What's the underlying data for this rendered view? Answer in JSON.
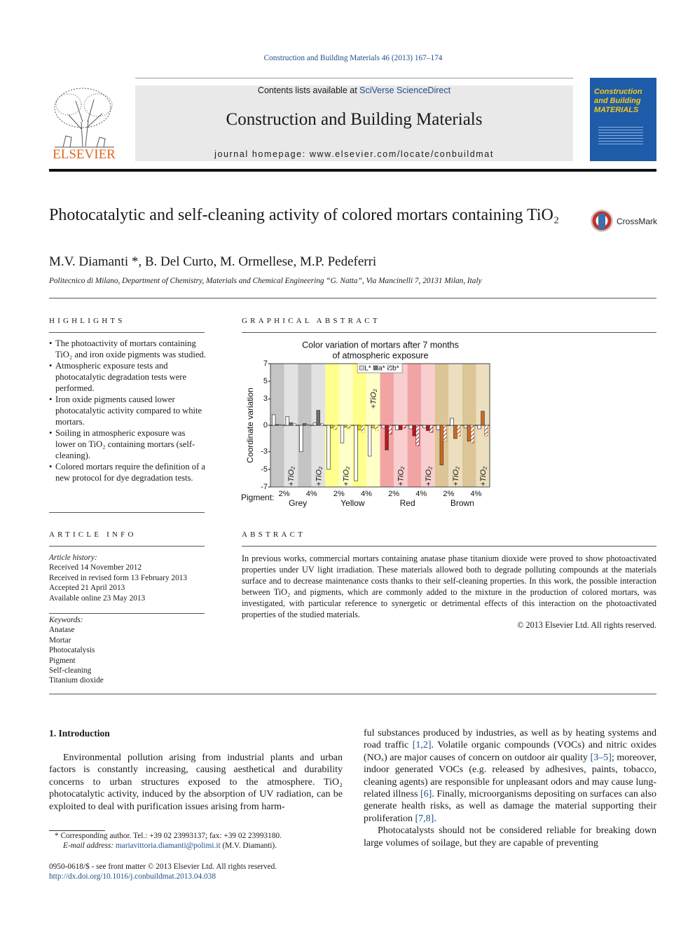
{
  "header": {
    "journal_ref": "Construction and Building Materials 46 (2013) 167–174",
    "contents_prefix": "Contents lists available at ",
    "contents_link": "SciVerse ScienceDirect",
    "journal": "Construction and Building Materials",
    "homepage_prefix": "journal homepage: ",
    "homepage": "www.elsevier.com/locate/conbuildmat",
    "publisher": "ELSEVIER",
    "cover_title": "Construction and Building MATERIALS"
  },
  "article": {
    "title": "Photocatalytic and self-cleaning activity of colored mortars containing TiO₂",
    "crossmark": "CrossMark",
    "authors": "M.V. Diamanti *, B. Del Curto, M. Ormellese, M.P. Pedeferri",
    "affiliation": "Politecnico di Milano, Department of Chemistry, Materials and Chemical Engineering “G. Natta”, Via Mancinelli 7, 20131 Milan, Italy"
  },
  "highlights": {
    "heading": "HIGHLIGHTS",
    "items": [
      "The photoactivity of mortars containing TiO₂ and iron oxide pigments was studied.",
      "Atmospheric exposure tests and photocatalytic degradation tests were performed.",
      "Iron oxide pigments caused lower photocatalytic activity compared to white mortars.",
      "Soiling in atmospheric exposure was lower on TiO₂ containing mortars (self-cleaning).",
      "Colored mortars require the definition of a new protocol for dye degradation tests."
    ]
  },
  "article_info": {
    "heading": "ARTICLE INFO",
    "history_label": "Article history:",
    "history": [
      "Received 14 November 2012",
      "Received in revised form 13 February 2013",
      "Accepted 21 April 2013",
      "Available online 23 May 2013"
    ],
    "keywords_label": "Keywords:",
    "keywords": [
      "Anatase",
      "Mortar",
      "Photocatalysis",
      "Pigment",
      "Self-cleaning",
      "Titanium dioxide"
    ]
  },
  "graphical_abstract": {
    "heading": "GRAPHICAL ABSTRACT",
    "chart_data": {
      "type": "bar",
      "title_lines": [
        "Color variation of mortars after 7 months",
        "of atmospheric exposure"
      ],
      "y_label": "Coordinate variation",
      "x_prefix": "Pigment:",
      "ylim": [
        -7,
        7
      ],
      "yticks": [
        -7,
        -5,
        -3,
        0,
        3,
        5,
        7
      ],
      "pair_labels": [
        "2%",
        "4%",
        "2%",
        "4%",
        "2%",
        "4%",
        "2%",
        "4%"
      ],
      "tio2_labels": [
        "+TiO₂",
        "+TiO₂",
        "+TiO₂",
        "+TiO₂",
        "+TiO₂",
        "+TiO₂",
        "+TiO₂",
        "+TiO₂"
      ],
      "groups": [
        {
          "name": "Grey",
          "color": "#707070",
          "backgrounds": [
            "#c4c4c4",
            "#e2e2e2"
          ]
        },
        {
          "name": "Yellow",
          "color": "#e8d800",
          "backgrounds": [
            "#ffff8c",
            "#ffffc8"
          ]
        },
        {
          "name": "Red",
          "color": "#c0141e",
          "backgrounds": [
            "#f2a4a4",
            "#f8cece"
          ]
        },
        {
          "name": "Brown",
          "color": "#d2691e",
          "backgrounds": [
            "#dcc596",
            "#ecdfbf"
          ]
        }
      ],
      "series": [
        {
          "name": "L*",
          "fill": "#ffffff",
          "values": [
            1.2,
            1.0,
            -3.0,
            0.3,
            -5.0,
            -2.0,
            -6.3,
            -3.5,
            -0.3,
            -0.5,
            -0.4,
            -0.3,
            -0.5,
            0.8,
            -0.3,
            -0.4
          ]
        },
        {
          "name": "a*",
          "fill": "group",
          "values": [
            0.1,
            0.3,
            0.2,
            1.7,
            -0.3,
            -0.2,
            -0.5,
            -0.3,
            -2.8,
            -0.5,
            -1.2,
            -0.6,
            -4.5,
            -1.5,
            -1.8,
            1.6
          ]
        },
        {
          "name": "b*",
          "fill": "hatch",
          "values": [
            0.1,
            0.2,
            0.1,
            0.2,
            -0.5,
            -0.4,
            -0.8,
            -0.6,
            -1.0,
            -0.3,
            -2.3,
            -0.8,
            -1.8,
            -1.2,
            -2.0,
            -1.2
          ]
        }
      ]
    }
  },
  "abstract": {
    "heading": "ABSTRACT",
    "text": "In previous works, commercial mortars containing anatase phase titanium dioxide were proved to show photoactivated properties under UV light irradiation. These materials allowed both to degrade polluting compounds at the materials surface and to decrease maintenance costs thanks to their self-cleaning properties. In this work, the possible interaction between TiO₂ and pigments, which are commonly added to the mixture in the production of colored mortars, was investigated, with particular reference to synergetic or detrimental effects of this interaction on the photoactivated properties of the studied materials.",
    "copyright": "© 2013 Elsevier Ltd. All rights reserved."
  },
  "introduction": {
    "heading": "1. Introduction",
    "paragraphs": [
      [
        {
          "text": "Environmental pollution arising from industrial plants and urban factors is constantly increasing, causing aesthetical and durability concerns to urban structures exposed to the atmosphere. TiO₂ photocatalytic activity, induced by the absorption of UV radiation, can be exploited to deal with purification issues arising from harm-"
        }
      ],
      [
        {
          "text": "ful substances produced by industries, as well as by heating systems and road traffic "
        },
        {
          "ref": "[1,2]"
        },
        {
          "text": ". Volatile organic compounds (VOCs) and nitric oxides (NOₓ) are major causes of concern on outdoor air quality "
        },
        {
          "ref": "[3–5]"
        },
        {
          "text": "; moreover, indoor generated VOCs (e.g. released by adhesives, paints, tobacco, cleaning agents) are responsible for unpleasant odors and may cause lung-related illness "
        },
        {
          "ref": "[6]"
        },
        {
          "text": ". Finally, microorganisms depositing on surfaces can also generate health risks, as well as damage the material supporting their proliferation "
        },
        {
          "ref": "[7,8]"
        },
        {
          "text": "."
        }
      ],
      [
        {
          "text": "Photocatalysts should not be considered reliable for breaking down large volumes of soilage, but they are capable of preventing"
        }
      ]
    ]
  },
  "footnote": {
    "corresponding": "* Corresponding author. Tel.: +39 02 23993137; fax: +39 02 23993180.",
    "email_label": "E-mail address: ",
    "email": "mariavittoria.diamanti@polimi.it",
    "email_suffix": " (M.V. Diamanti)."
  },
  "footer": {
    "issn": "0950-0618/$ - see front matter © 2013 Elsevier Ltd. All rights reserved.",
    "doi": "http://dx.doi.org/10.1016/j.conbuildmat.2013.04.038"
  }
}
